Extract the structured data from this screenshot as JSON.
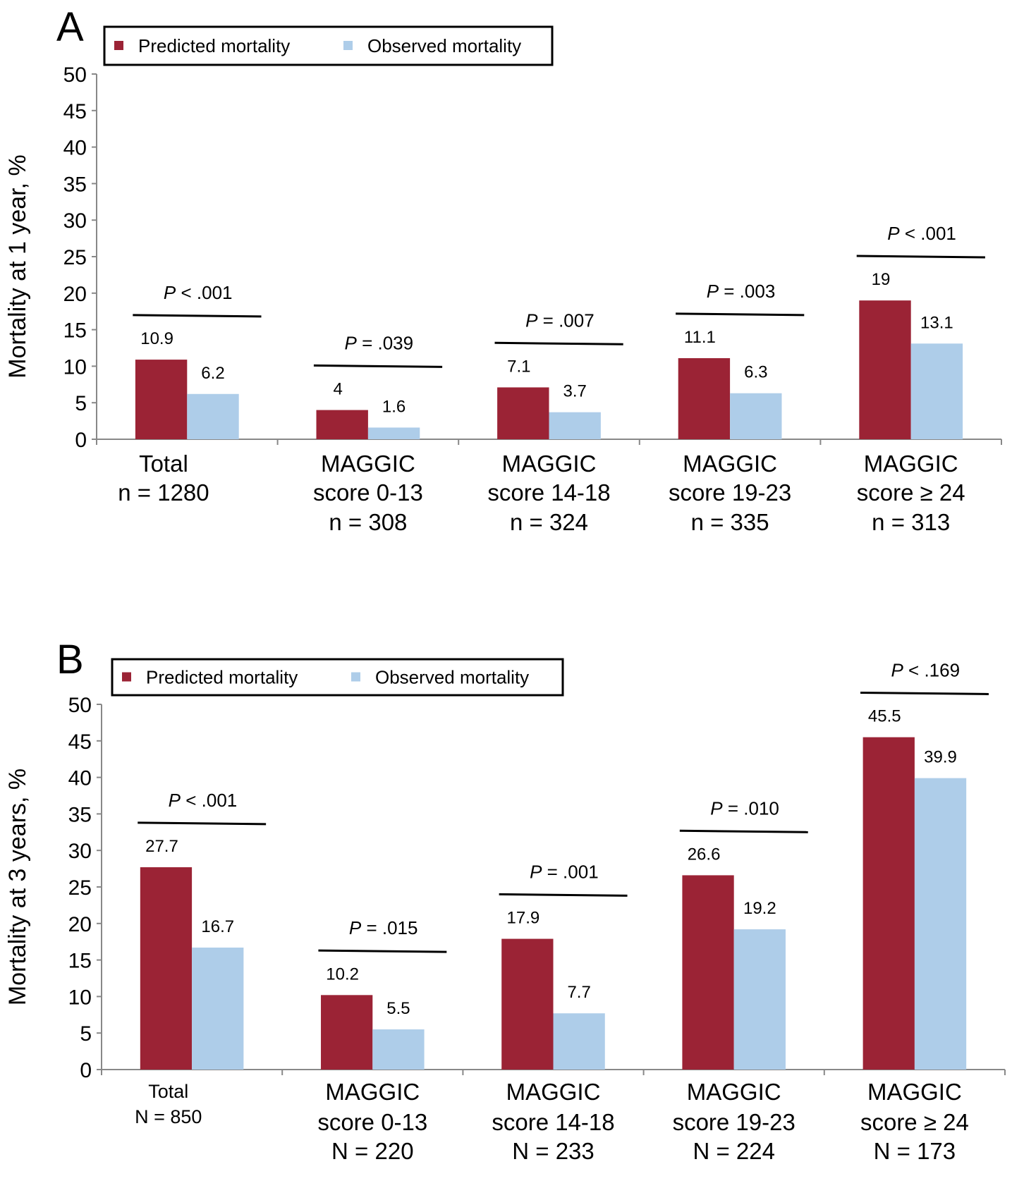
{
  "colors": {
    "predicted": "#9b2335",
    "observed": "#aecde9"
  },
  "chart_data": [
    {
      "type": "bar",
      "panel_label": "A",
      "ylabel": "Mortality at 1 year, %",
      "ylim": [
        0,
        50
      ],
      "yticks": [
        "0",
        "5",
        "10",
        "15",
        "20",
        "25",
        "30",
        "35",
        "40",
        "45",
        "50"
      ],
      "legend": {
        "placement": "top-left",
        "entries": [
          "Predicted mortality",
          "Observed mortality"
        ]
      },
      "categories": [
        [
          "Total",
          "n = 1280"
        ],
        [
          "MAGGIC",
          "score 0-13",
          "n = 308"
        ],
        [
          "MAGGIC",
          "score 14-18",
          "n = 324"
        ],
        [
          "MAGGIC",
          "score 19-23",
          "n = 335"
        ],
        [
          "MAGGIC",
          "score ≥ 24",
          "n = 313"
        ]
      ],
      "series": [
        {
          "name": "Predicted mortality",
          "values": [
            10.9,
            4,
            7.1,
            11.1,
            19
          ],
          "labels": [
            "10.9",
            "4",
            "7.1",
            "11.1",
            "19"
          ]
        },
        {
          "name": "Observed mortality",
          "values": [
            6.2,
            1.6,
            3.7,
            6.3,
            13.1
          ],
          "labels": [
            "6.2",
            "1.6",
            "3.7",
            "6.3",
            "13.1"
          ]
        }
      ],
      "p_values": [
        {
          "p": "P",
          "text": " < .001"
        },
        {
          "p": "P",
          "text": " = .039"
        },
        {
          "p": "P",
          "text": " = .007"
        },
        {
          "p": "P",
          "text": " = .003"
        },
        {
          "p": "P",
          "text": " < .001"
        }
      ],
      "grid": false
    },
    {
      "type": "bar",
      "panel_label": "B",
      "ylabel": "Mortality at 3 years, %",
      "ylim": [
        0,
        50
      ],
      "yticks": [
        "0",
        "5",
        "10",
        "15",
        "20",
        "25",
        "30",
        "35",
        "40",
        "45",
        "50"
      ],
      "legend": {
        "placement": "top-left",
        "entries": [
          "Predicted mortality",
          "Observed mortality"
        ]
      },
      "categories": [
        [
          "Total",
          "N = 850"
        ],
        [
          "MAGGIC",
          "score 0-13",
          "N = 220"
        ],
        [
          "MAGGIC",
          "score 14-18",
          "N = 233"
        ],
        [
          "MAGGIC",
          "score 19-23",
          "N = 224"
        ],
        [
          "MAGGIC",
          "score ≥ 24",
          "N = 173"
        ]
      ],
      "series": [
        {
          "name": "Predicted mortality",
          "values": [
            27.7,
            10.2,
            17.9,
            26.6,
            45.5
          ],
          "labels": [
            "27.7",
            "10.2",
            "17.9",
            "26.6",
            "45.5"
          ]
        },
        {
          "name": "Observed mortality",
          "values": [
            16.7,
            5.5,
            7.7,
            19.2,
            39.9
          ],
          "labels": [
            "16.7",
            "5.5",
            "7.7",
            "19.2",
            "39.9"
          ]
        }
      ],
      "p_values": [
        {
          "p": "P",
          "text": " < .001"
        },
        {
          "p": "P",
          "text": " = .015"
        },
        {
          "p": "P",
          "text": " = .001"
        },
        {
          "p": "P",
          "text": " = .010"
        },
        {
          "p": "P",
          "text": " < .169"
        }
      ],
      "grid": false
    }
  ]
}
